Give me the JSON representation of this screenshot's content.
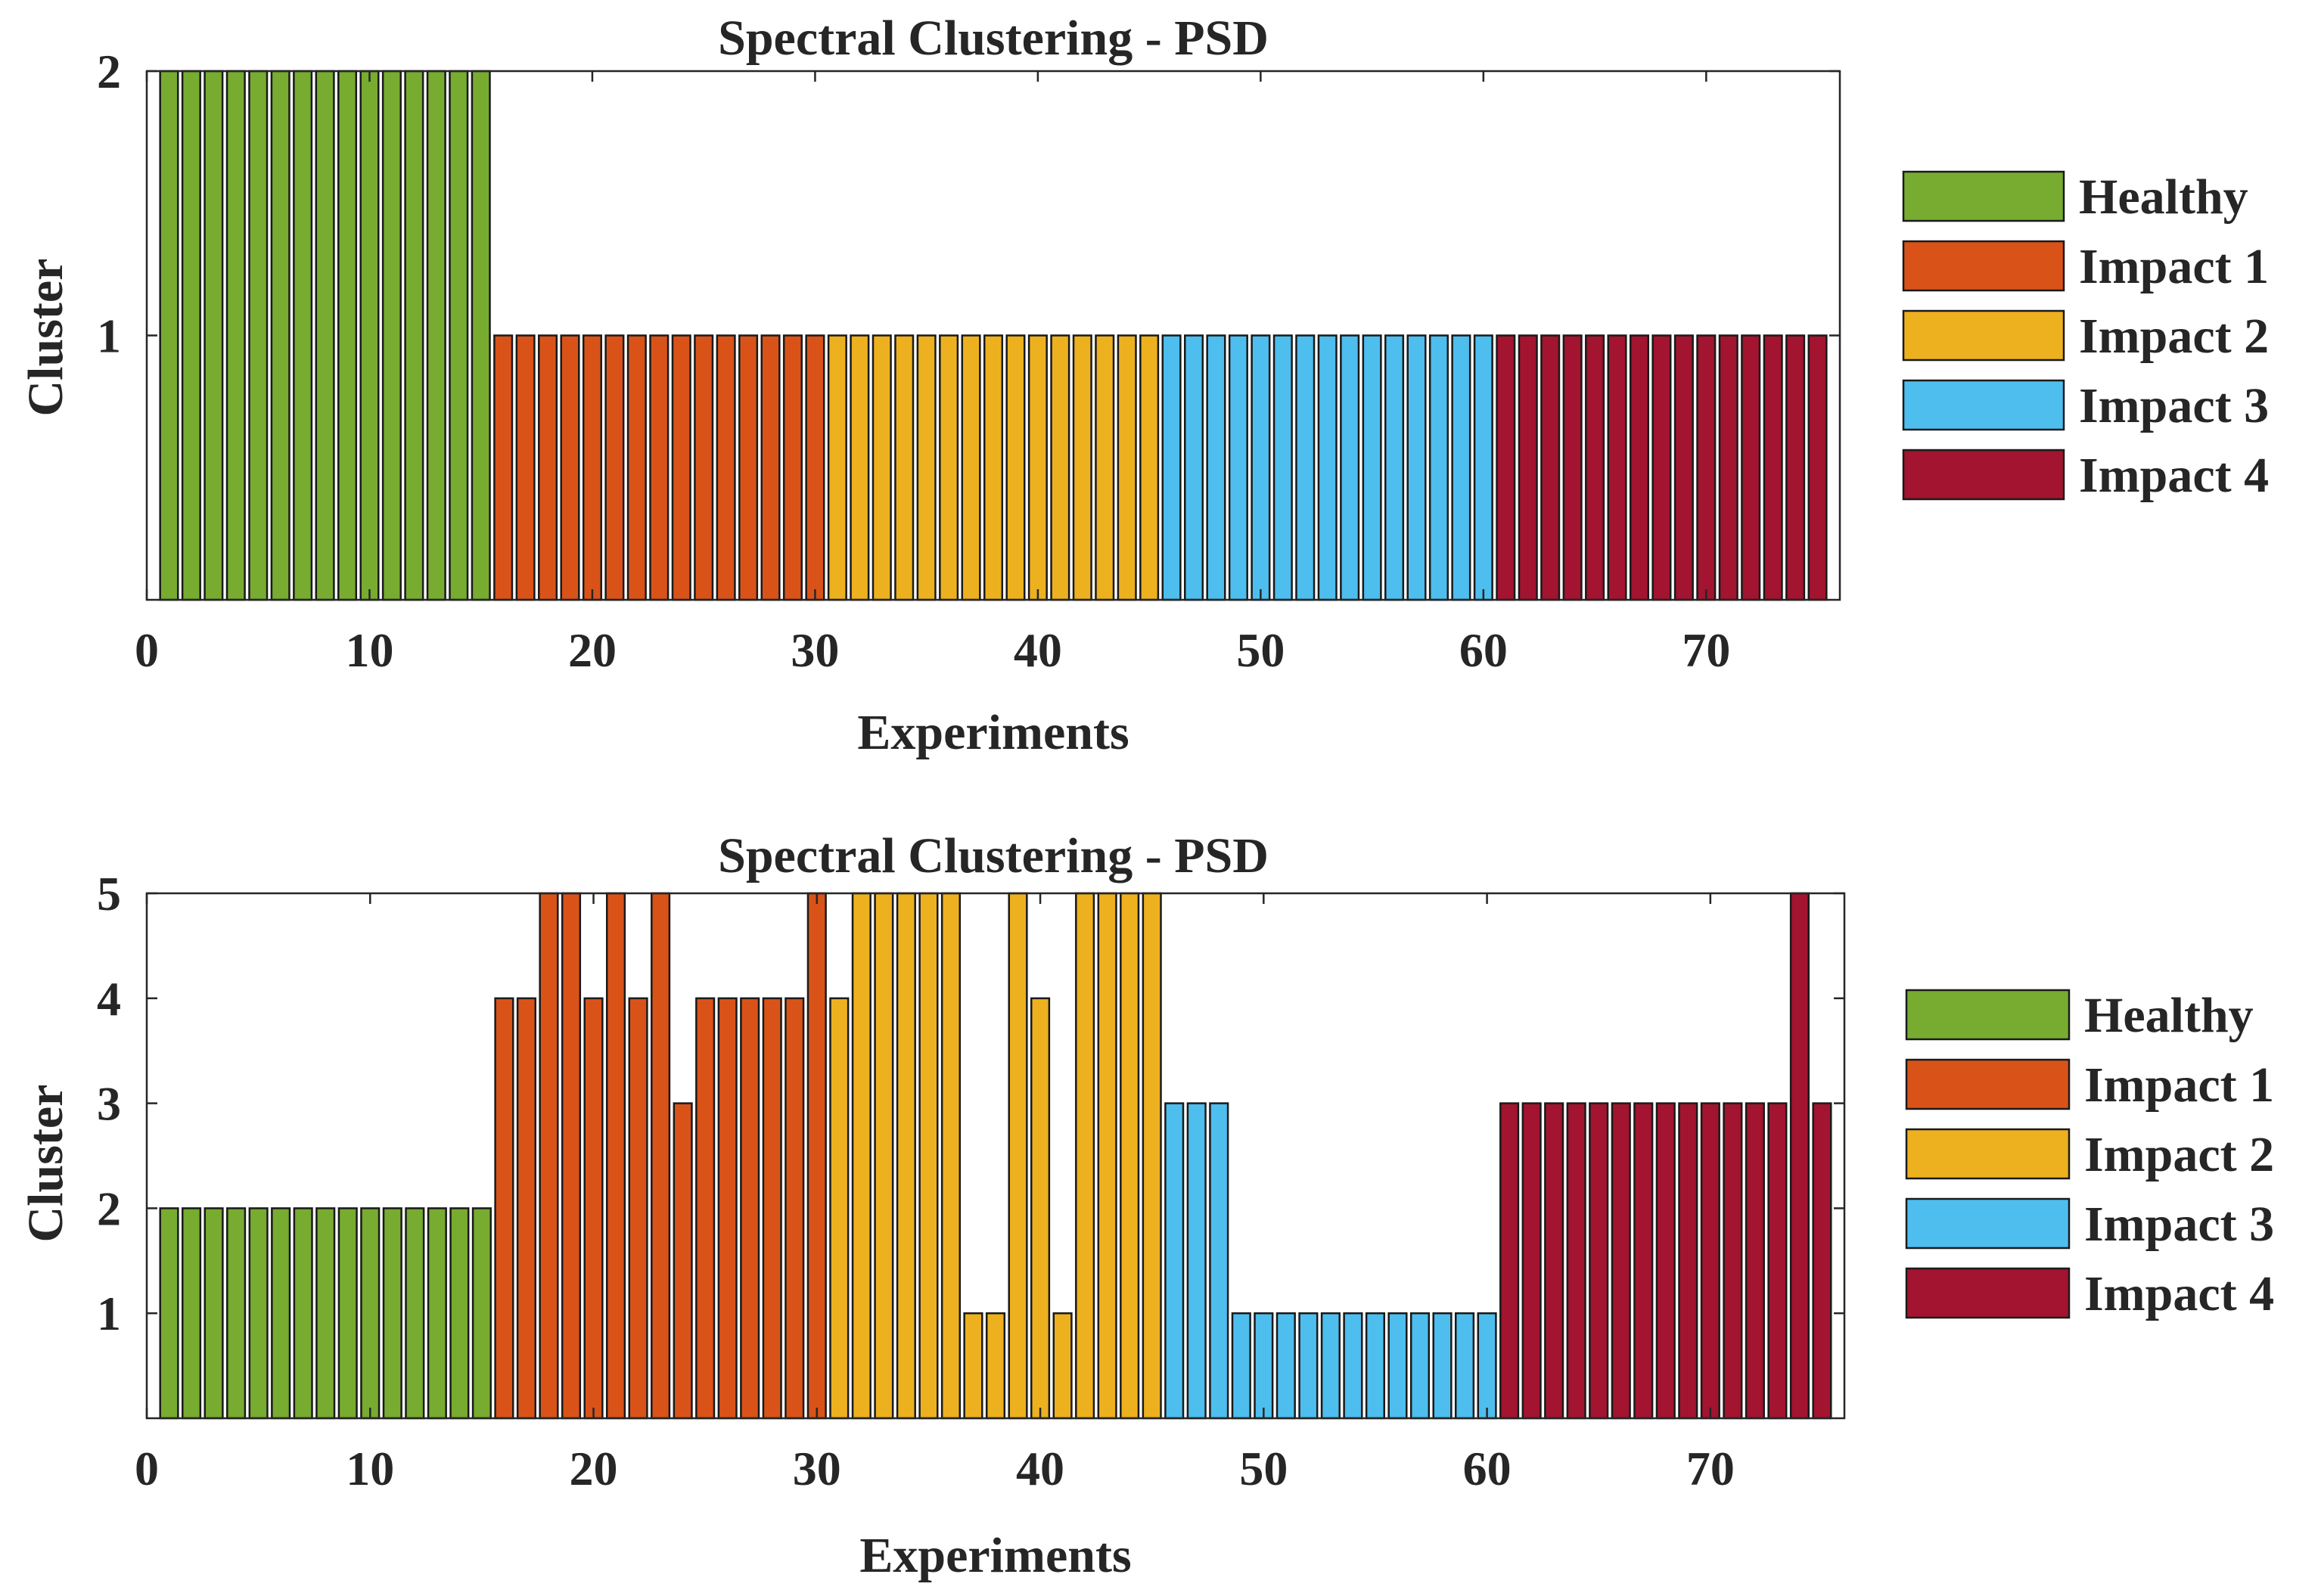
{
  "chart_data": [
    {
      "type": "bar",
      "title": "Spectral Clustering - PSD",
      "xlabel": "Experiments",
      "ylabel": "Cluster",
      "xlim": [
        0,
        76
      ],
      "ylim": [
        0,
        2
      ],
      "xticks": [
        0,
        10,
        20,
        30,
        40,
        50,
        60,
        70
      ],
      "yticks": [
        1,
        2
      ],
      "grid": false,
      "legend_position": "right",
      "series": [
        {
          "name": "Healthy",
          "color": "#77ac30",
          "x": [
            1,
            2,
            3,
            4,
            5,
            6,
            7,
            8,
            9,
            10,
            11,
            12,
            13,
            14,
            15
          ],
          "values": [
            2,
            2,
            2,
            2,
            2,
            2,
            2,
            2,
            2,
            2,
            2,
            2,
            2,
            2,
            2
          ]
        },
        {
          "name": "Impact 1",
          "color": "#d95319",
          "x": [
            16,
            17,
            18,
            19,
            20,
            21,
            22,
            23,
            24,
            25,
            26,
            27,
            28,
            29,
            30
          ],
          "values": [
            1,
            1,
            1,
            1,
            1,
            1,
            1,
            1,
            1,
            1,
            1,
            1,
            1,
            1,
            1
          ]
        },
        {
          "name": "Impact 2",
          "color": "#edb120",
          "x": [
            31,
            32,
            33,
            34,
            35,
            36,
            37,
            38,
            39,
            40,
            41,
            42,
            43,
            44,
            45
          ],
          "values": [
            1,
            1,
            1,
            1,
            1,
            1,
            1,
            1,
            1,
            1,
            1,
            1,
            1,
            1,
            1
          ]
        },
        {
          "name": "Impact 3",
          "color": "#4dbeee",
          "x": [
            46,
            47,
            48,
            49,
            50,
            51,
            52,
            53,
            54,
            55,
            56,
            57,
            58,
            59,
            60
          ],
          "values": [
            1,
            1,
            1,
            1,
            1,
            1,
            1,
            1,
            1,
            1,
            1,
            1,
            1,
            1,
            1
          ]
        },
        {
          "name": "Impact 4",
          "color": "#a2142f",
          "x": [
            61,
            62,
            63,
            64,
            65,
            66,
            67,
            68,
            69,
            70,
            71,
            72,
            73,
            74,
            75
          ],
          "values": [
            1,
            1,
            1,
            1,
            1,
            1,
            1,
            1,
            1,
            1,
            1,
            1,
            1,
            1,
            1
          ]
        }
      ]
    },
    {
      "type": "bar",
      "title": "Spectral Clustering - PSD",
      "xlabel": "Experiments",
      "ylabel": "Cluster",
      "xlim": [
        0,
        76
      ],
      "ylim": [
        0,
        5
      ],
      "xticks": [
        0,
        10,
        20,
        30,
        40,
        50,
        60,
        70
      ],
      "yticks": [
        1,
        2,
        3,
        4,
        5
      ],
      "grid": false,
      "legend_position": "right",
      "series": [
        {
          "name": "Healthy",
          "color": "#77ac30",
          "x": [
            1,
            2,
            3,
            4,
            5,
            6,
            7,
            8,
            9,
            10,
            11,
            12,
            13,
            14,
            15
          ],
          "values": [
            2,
            2,
            2,
            2,
            2,
            2,
            2,
            2,
            2,
            2,
            2,
            2,
            2,
            2,
            2
          ]
        },
        {
          "name": "Impact 1",
          "color": "#d95319",
          "x": [
            16,
            17,
            18,
            19,
            20,
            21,
            22,
            23,
            24,
            25,
            26,
            27,
            28,
            29,
            30
          ],
          "values": [
            4,
            4,
            5,
            5,
            4,
            5,
            4,
            5,
            3,
            4,
            4,
            4,
            4,
            4,
            5
          ]
        },
        {
          "name": "Impact 2",
          "color": "#edb120",
          "x": [
            31,
            32,
            33,
            34,
            35,
            36,
            37,
            38,
            39,
            40,
            41,
            42,
            43,
            44,
            45
          ],
          "values": [
            4,
            5,
            5,
            5,
            5,
            5,
            1,
            1,
            5,
            4,
            1,
            5,
            5,
            5,
            5
          ]
        },
        {
          "name": "Impact 3",
          "color": "#4dbeee",
          "x": [
            46,
            47,
            48,
            49,
            50,
            51,
            52,
            53,
            54,
            55,
            56,
            57,
            58,
            59,
            60
          ],
          "values": [
            3,
            3,
            3,
            1,
            1,
            1,
            1,
            1,
            1,
            1,
            1,
            1,
            1,
            1,
            1
          ]
        },
        {
          "name": "Impact 4",
          "color": "#a2142f",
          "x": [
            61,
            62,
            63,
            64,
            65,
            66,
            67,
            68,
            69,
            70,
            71,
            72,
            73,
            74,
            75
          ],
          "values": [
            3,
            3,
            3,
            3,
            3,
            3,
            3,
            3,
            3,
            3,
            3,
            3,
            3,
            5,
            3
          ]
        }
      ]
    }
  ]
}
